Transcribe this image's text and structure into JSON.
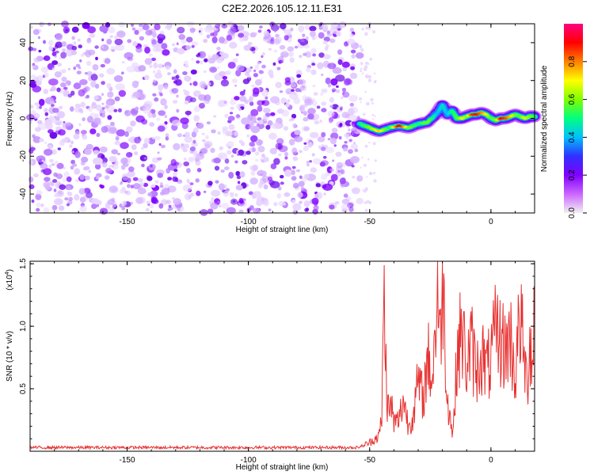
{
  "figure": {
    "title": "C2E2.2026.105.12.11.E31"
  },
  "chart_data": [
    {
      "type": "heatmap",
      "xlabel": "Height of straight line (km)",
      "ylabel": "Frequency (Hz)",
      "xlim": [
        -190,
        18
      ],
      "ylim": [
        -50,
        50
      ],
      "x_ticks": [
        "-150",
        "-100",
        "-50",
        "0"
      ],
      "x_tick_values": [
        -150,
        -100,
        -50,
        0
      ],
      "y_ticks": [
        "-40",
        "-20",
        "0",
        "20",
        "40"
      ],
      "y_tick_values": [
        -40,
        -20,
        0,
        20,
        40
      ],
      "noise_region_x": [
        -190,
        -54
      ],
      "ridge": {
        "x": [
          -54,
          -50,
          -46,
          -42,
          -38,
          -34,
          -30,
          -26,
          -22,
          -20,
          -18,
          -16,
          -14,
          -12,
          -10,
          -8,
          -6,
          -4,
          -2,
          0,
          2,
          4,
          6,
          8,
          10,
          12,
          14,
          16,
          18
        ],
        "y": [
          -3,
          -5,
          -7,
          -5,
          -4,
          -5,
          -3,
          -2,
          3,
          7,
          2,
          4,
          0,
          0,
          1,
          2,
          2,
          3,
          2,
          0,
          -1,
          0,
          0,
          1,
          2,
          1,
          0,
          1,
          1
        ],
        "amp": [
          0.5,
          0.6,
          0.75,
          0.5,
          0.95,
          0.6,
          0.5,
          0.6,
          0.4,
          0.45,
          0.4,
          0.5,
          0.55,
          0.7,
          0.6,
          0.85,
          0.9,
          0.8,
          0.7,
          0.55,
          0.6,
          0.9,
          0.85,
          0.75,
          0.6,
          0.55,
          0.7,
          0.6,
          0.55
        ]
      },
      "colorbar": {
        "label": "Normalized spectral amplitude",
        "range": [
          0.0,
          1.0
        ],
        "ticks": [
          "0.0",
          "0.2",
          "0.4",
          "0.6",
          "0.8"
        ],
        "tick_values": [
          0.0,
          0.2,
          0.4,
          0.6,
          0.8
        ],
        "colormap": [
          "#f0f0f0",
          "#cc66ff",
          "#8000ff",
          "#3030ff",
          "#00c0ff",
          "#00ff80",
          "#80ff00",
          "#ffff00",
          "#ff8000",
          "#ff0000",
          "#ff0080"
        ]
      }
    },
    {
      "type": "line",
      "xlabel": "Height of straight line (km)",
      "ylabel": "SNR (10 * v/v)",
      "scale_label": "(x10",
      "scale_exponent": "4",
      "xlim": [
        -190,
        18
      ],
      "ylim": [
        0,
        1.52
      ],
      "x_ticks": [
        "-150",
        "-100",
        "-50",
        "0"
      ],
      "x_tick_values": [
        -150,
        -100,
        -50,
        0
      ],
      "y_ticks": [
        "0.5",
        "1.0",
        "1.5"
      ],
      "y_tick_values": [
        0.5,
        1.0,
        1.5
      ],
      "color": "#e83030",
      "series": [
        {
          "x": [
            -190,
            -100,
            -55,
            -52,
            -50,
            -48,
            -46,
            -45,
            -44,
            -43,
            -42,
            -41,
            -40,
            -38,
            -36,
            -34,
            -32,
            -30,
            -28,
            -26,
            -24,
            -22,
            -21,
            -20,
            -19,
            -18,
            -16,
            -15,
            -14,
            -12,
            -10,
            -8,
            -6,
            -4,
            -2,
            0,
            2,
            4,
            6,
            8,
            10,
            12,
            14,
            15,
            16,
            17,
            18
          ],
          "y": [
            0.03,
            0.03,
            0.03,
            0.05,
            0.07,
            0.1,
            0.13,
            0.28,
            1.28,
            0.45,
            0.3,
            0.38,
            0.22,
            0.25,
            0.42,
            0.2,
            0.3,
            0.55,
            0.42,
            0.75,
            0.58,
            1.35,
            0.8,
            1.52,
            0.9,
            0.45,
            0.15,
            0.3,
            0.8,
            0.95,
            0.7,
            0.85,
            0.62,
            0.8,
            0.65,
            0.72,
            0.95,
            0.88,
            0.82,
            0.92,
            0.6,
            1.08,
            0.68,
            0.5,
            0.95,
            0.7,
            1.2
          ]
        }
      ]
    }
  ]
}
